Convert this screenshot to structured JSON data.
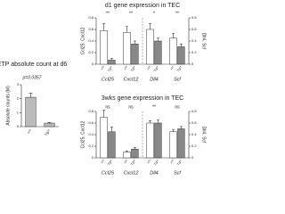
{
  "chart_data": [
    {
      "type": "bar",
      "title": "ETP absolute count at d6",
      "annotation": "p=0.0357",
      "ylabel": "Absolute counts (M)",
      "categories": [
        "+/+",
        "Tg/+"
      ],
      "values": [
        2.1,
        0.25
      ],
      "errors": [
        0.3,
        0.05
      ],
      "color": "#bbbbbb",
      "ylim": [
        0,
        3
      ],
      "yticks": [
        0,
        1,
        2,
        3
      ]
    },
    {
      "type": "grouped_bar",
      "title": "d1 gene expression in TEC",
      "ylabel": "Ccl25, Cxcl12",
      "y2label": "Dll4, Scf",
      "categories": [
        "Ccl25",
        "Cxcl12",
        "Dll4",
        "Scf"
      ],
      "category_axis": [
        "y",
        "y",
        "y2",
        "y2"
      ],
      "annotations": [
        "**",
        "**",
        "*",
        "**"
      ],
      "series": [
        {
          "name": "+/+",
          "color": "#ffffff",
          "values": [
            0.58,
            0.55,
            0.6,
            0.45
          ],
          "errors": [
            0.12,
            0.1,
            0.1,
            0.08
          ]
        },
        {
          "name": "Tg/+",
          "color": "#888888",
          "values": [
            0.07,
            0.35,
            0.4,
            0.3
          ],
          "errors": [
            0.03,
            0.05,
            0.05,
            0.05
          ]
        }
      ],
      "ylim": [
        0,
        0.8
      ],
      "yticks": [
        0,
        0.2,
        0.4,
        0.6,
        0.8
      ],
      "y2lim": [
        0,
        0.8
      ],
      "y2ticks": [
        0,
        0.2,
        0.4,
        0.6,
        0.8
      ]
    },
    {
      "type": "grouped_bar",
      "title": "3wks gene expression in TEC",
      "ylabel": "Ccl25, Cxcl12",
      "y2label": "Dll4, Scf",
      "categories": [
        "Ccl25",
        "Cxcl12",
        "Dll4",
        "Scf"
      ],
      "category_axis": [
        "y",
        "y",
        "y2",
        "y2"
      ],
      "annotations": [
        "ns",
        "ns",
        "**",
        "ns"
      ],
      "series": [
        {
          "name": "+/+",
          "color": "#ffffff",
          "values": [
            0.7,
            0.1,
            0.6,
            0.45
          ],
          "errors": [
            0.12,
            0.02,
            0.04,
            0.04
          ]
        },
        {
          "name": "Tg/+",
          "color": "#888888",
          "values": [
            0.45,
            0.15,
            0.6,
            0.5
          ],
          "errors": [
            0.08,
            0.03,
            0.05,
            0.04
          ]
        }
      ],
      "ylim": [
        0,
        0.8
      ],
      "yticks": [
        0,
        0.2,
        0.4,
        0.6,
        0.8
      ],
      "y2lim": [
        0,
        0.8
      ],
      "y2ticks": [
        0,
        0.2,
        0.4,
        0.6,
        0.8
      ]
    }
  ]
}
